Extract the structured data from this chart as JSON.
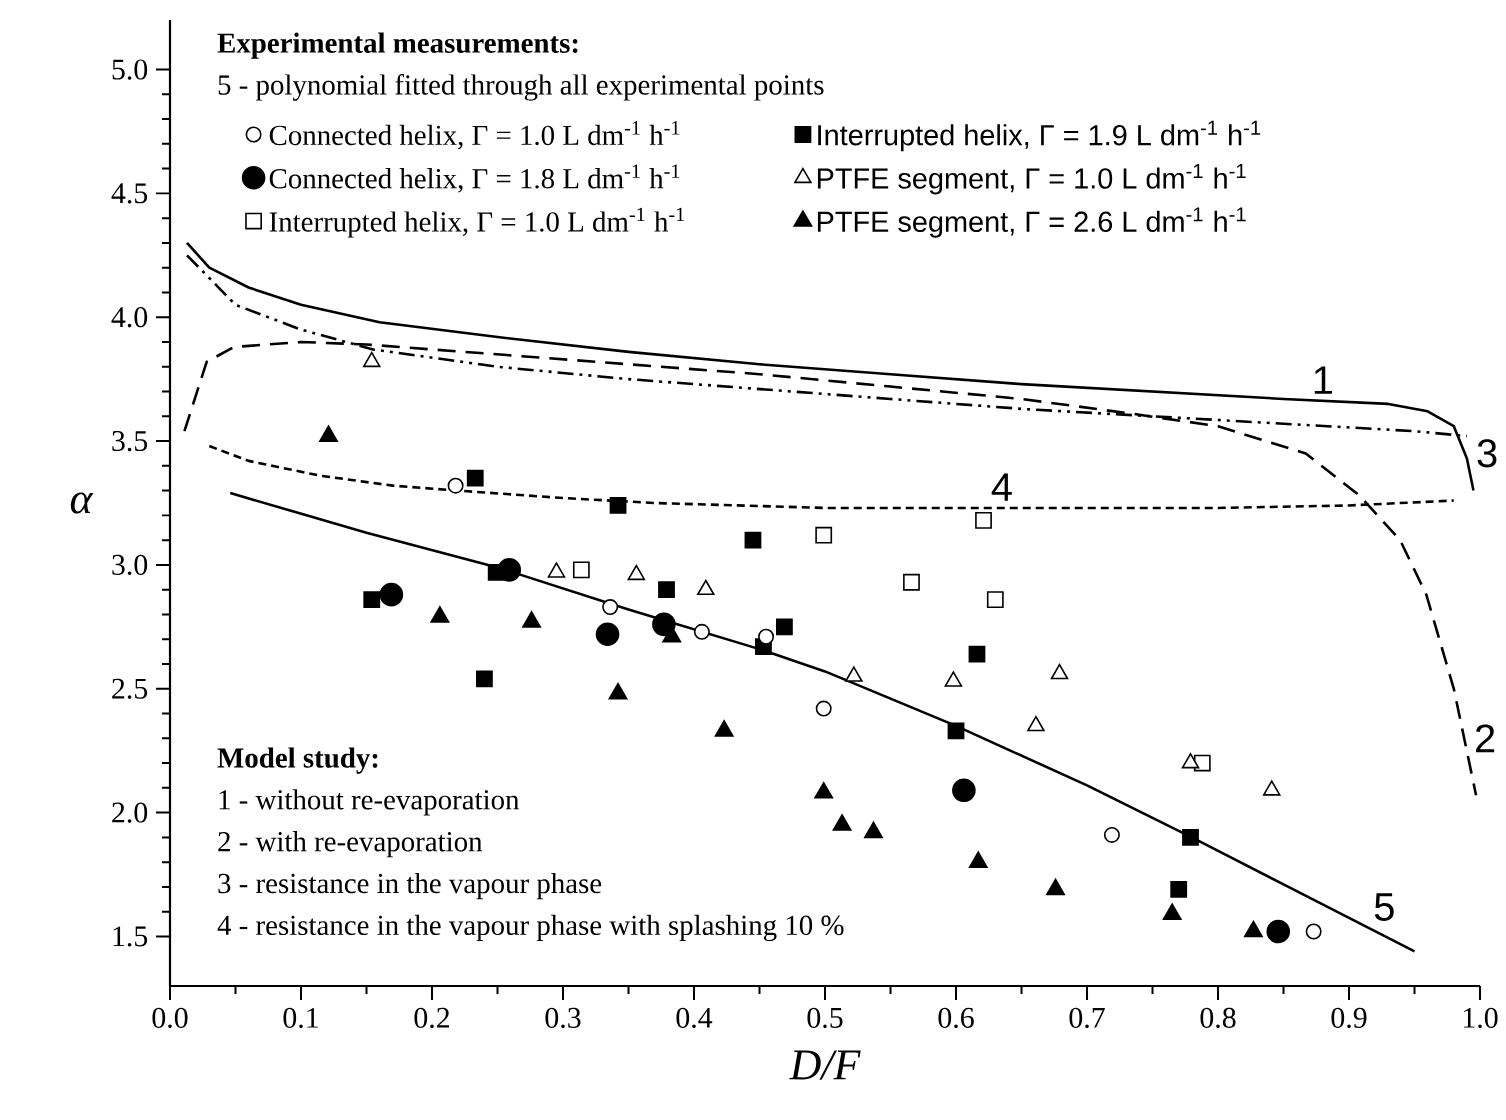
{
  "chart_data": {
    "type": "scatter",
    "xlabel": "D/F",
    "ylabel": "α",
    "legend_title": "Experimental measurements:",
    "legend": "top left",
    "xlim": [
      0,
      1
    ],
    "ylim": [
      1.3,
      5.2
    ],
    "xticks": [
      {
        "value": 0,
        "label": "0.0"
      },
      {
        "value": 0.1,
        "label": "0.1"
      },
      {
        "value": 0.2,
        "label": "0.2"
      },
      {
        "value": 0.3,
        "label": "0.3"
      },
      {
        "value": 0.4,
        "label": "0.4"
      },
      {
        "value": 0.5,
        "label": "0.5"
      },
      {
        "value": 0.6,
        "label": "0.6"
      },
      {
        "value": 0.7,
        "label": "0.7"
      },
      {
        "value": 0.8,
        "label": "0.8"
      },
      {
        "value": 0.9,
        "label": "0.9"
      },
      {
        "value": 1,
        "label": "1.0"
      }
    ],
    "yticks": [
      {
        "value": 1.5,
        "label": "1.5"
      },
      {
        "value": 2,
        "label": "2.0"
      },
      {
        "value": 2.5,
        "label": "2.5"
      },
      {
        "value": 3,
        "label": "3.0"
      },
      {
        "value": 3.5,
        "label": "3.5"
      },
      {
        "value": 4,
        "label": "4.0"
      },
      {
        "value": 4.5,
        "label": "4.5"
      },
      {
        "value": 5,
        "label": "5.0"
      }
    ],
    "series": [
      {
        "name": "Connected helix, Γ = 1.0 L dm$^{-1}$ h$^{-1}$",
        "color": "#000000",
        "marker": "circle-open",
        "x": [
          0.218,
          0.336,
          0.406,
          0.455,
          0.499,
          0.719,
          0.873
        ],
        "values": [
          3.32,
          2.83,
          2.73,
          2.71,
          2.42,
          1.91,
          1.52
        ]
      },
      {
        "name": "Connected helix, Γ = 1.8 L dm$^{-1}$ h$^{-1}$",
        "color": "#000000",
        "marker": "circle",
        "x": [
          0.169,
          0.259,
          0.334,
          0.377,
          0.606,
          0.846
        ],
        "values": [
          2.88,
          2.98,
          2.72,
          2.76,
          2.09,
          1.52
        ]
      },
      {
        "name": "Interrupted helix, Γ = 1.0 L dm$^{-1}$ h$^{-1}$",
        "color": "#000000",
        "marker": "square-open",
        "x": [
          0.314,
          0.499,
          0.566,
          0.621,
          0.63,
          0.788
        ],
        "values": [
          2.98,
          3.12,
          2.93,
          3.18,
          2.86,
          2.2
        ]
      },
      {
        "name": "Interrupted helix, Γ = 1.9 L dm$^{-1}$ h$^{-1}$",
        "color": "#000000",
        "marker": "square",
        "x": [
          0.154,
          0.233,
          0.24,
          0.249,
          0.342,
          0.379,
          0.445,
          0.453,
          0.469,
          0.6,
          0.616,
          0.77,
          0.779
        ],
        "values": [
          2.86,
          3.35,
          2.54,
          2.97,
          3.24,
          2.9,
          3.1,
          2.67,
          2.75,
          2.33,
          2.64,
          1.69,
          1.9
        ]
      },
      {
        "name": "PTFE segment, Γ = 1.0 L dm$^{-1}$ h$^{-1}$",
        "color": "#000000",
        "marker": "triangle-open",
        "x": [
          0.154,
          0.295,
          0.356,
          0.409,
          0.522,
          0.598,
          0.661,
          0.679,
          0.779,
          0.841
        ],
        "values": [
          3.82,
          2.97,
          2.96,
          2.9,
          2.55,
          2.53,
          2.35,
          2.56,
          2.2,
          2.09
        ]
      },
      {
        "name": "PTFE segment, Γ = 2.6 L dm$^{-1}$ h$^{-1}$",
        "color": "#000000",
        "marker": "triangle",
        "x": [
          0.121,
          0.206,
          0.276,
          0.342,
          0.383,
          0.423,
          0.499,
          0.513,
          0.537,
          0.617,
          0.676,
          0.765,
          0.827
        ],
        "values": [
          3.52,
          2.79,
          2.77,
          2.48,
          2.71,
          2.33,
          2.08,
          1.95,
          1.92,
          1.8,
          1.69,
          1.59,
          1.52
        ]
      },
      {
        "type": "line",
        "color": "#000000",
        "line_style": "solid",
        "marker": "none",
        "x": [
          0.013,
          0.03,
          0.06,
          0.1,
          0.16,
          0.25,
          0.35,
          0.45,
          0.55,
          0.65,
          0.75,
          0.85,
          0.93,
          0.96,
          0.98,
          0.99,
          0.995
        ],
        "values": [
          4.3,
          4.2,
          4.12,
          4.05,
          3.98,
          3.92,
          3.86,
          3.81,
          3.77,
          3.73,
          3.7,
          3.67,
          3.65,
          3.62,
          3.56,
          3.43,
          3.3
        ]
      },
      {
        "type": "line",
        "color": "#000000",
        "line_style": "dashed",
        "marker": "none",
        "x": [
          0.011,
          0.028,
          0.049,
          0.1,
          0.15,
          0.25,
          0.35,
          0.45,
          0.55,
          0.65,
          0.735,
          0.8,
          0.867,
          0.908,
          0.939,
          0.959,
          0.98,
          0.997
        ],
        "values": [
          3.54,
          3.82,
          3.88,
          3.9,
          3.89,
          3.85,
          3.81,
          3.77,
          3.72,
          3.67,
          3.61,
          3.56,
          3.45,
          3.28,
          3.1,
          2.88,
          2.5,
          2.07
        ]
      },
      {
        "type": "line",
        "color": "#000000",
        "line_style": "dashdot",
        "marker": "none",
        "x": [
          0.013,
          0.05,
          0.1,
          0.155,
          0.25,
          0.35,
          0.45,
          0.55,
          0.65,
          0.75,
          0.85,
          0.95,
          0.99
        ],
        "values": [
          4.25,
          4.05,
          3.95,
          3.87,
          3.8,
          3.75,
          3.71,
          3.67,
          3.63,
          3.6,
          3.57,
          3.54,
          3.52
        ]
      },
      {
        "type": "line",
        "color": "#000000",
        "line_style": "dotted",
        "marker": "none",
        "x": [
          0.03,
          0.06,
          0.115,
          0.17,
          0.22,
          0.3,
          0.37,
          0.5,
          0.65,
          0.8,
          0.9,
          0.98
        ],
        "values": [
          3.48,
          3.42,
          3.36,
          3.32,
          3.3,
          3.27,
          3.25,
          3.23,
          3.23,
          3.23,
          3.24,
          3.26
        ]
      },
      {
        "type": "line",
        "color": "#000000",
        "line_style": "solid",
        "marker": "none",
        "x": [
          0.046,
          0.15,
          0.25,
          0.35,
          0.45,
          0.5,
          0.6,
          0.7,
          0.78,
          0.85,
          0.95
        ],
        "values": [
          3.29,
          3.13,
          2.99,
          2.82,
          2.66,
          2.57,
          2.35,
          2.11,
          1.9,
          1.71,
          1.44
        ]
      }
    ],
    "annotations": [
      "5 - polynomial fitted through all experimental points",
      "Model study:",
      "1 - without re-evaporation",
      "2 - with re-evaporation",
      "3 - resistance in the vapour phase",
      "4 - resistance in the vapour phase with splashing 10 %",
      {
        "text": "1",
        "x": 0.88,
        "y": 3.67
      },
      {
        "text": "2",
        "x": 0.99,
        "y": 2.3
      },
      {
        "text": "3",
        "x": 0.99,
        "y": 3.52
      },
      {
        "text": "4",
        "x": 0.635,
        "y": 3.23
      },
      {
        "text": "5",
        "x": 0.91,
        "y": 1.55
      }
    ]
  }
}
